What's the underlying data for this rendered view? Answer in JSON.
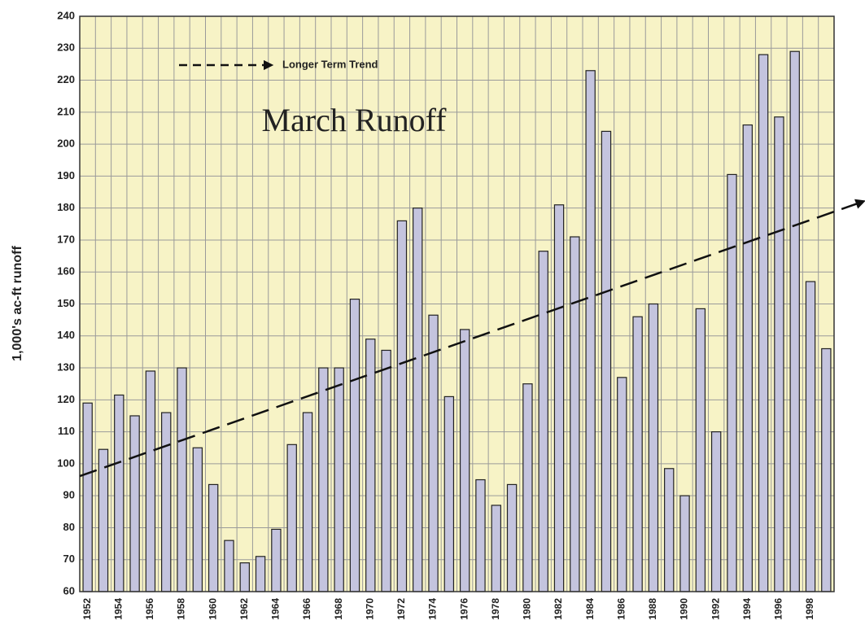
{
  "chart_data": {
    "type": "bar",
    "title": "March Runoff",
    "y_label": "1,000's ac-ft runoff",
    "legend": "Longer Term Trend",
    "trend_start": 97,
    "trend_end": 178,
    "categories": [
      "1952",
      null,
      "1954",
      null,
      "1956",
      null,
      "1958",
      null,
      "1960",
      null,
      "1962",
      null,
      "1964",
      null,
      "1966",
      null,
      "1968",
      null,
      "1970",
      null,
      "1972",
      null,
      "1974",
      null,
      "1976",
      null,
      "1978",
      null,
      "1980",
      null,
      "1982",
      null,
      "1984",
      null,
      "1986",
      null,
      "1988",
      null,
      "1990",
      null,
      "1992",
      null,
      "1994",
      null,
      "1996",
      null,
      "1998",
      null
    ],
    "values": [
      119,
      104.5,
      121.5,
      115,
      129,
      116,
      130,
      105,
      93.5,
      76,
      69,
      71,
      79.5,
      106,
      116,
      130,
      130,
      151.5,
      139,
      135.5,
      176,
      180,
      146.5,
      121,
      142,
      95,
      87,
      93.5,
      125,
      166.5,
      181,
      171,
      223,
      204,
      127,
      146,
      150,
      98.5,
      90,
      148.5,
      110,
      190.5,
      206,
      228,
      208.5,
      229,
      157,
      136
    ],
    "color": "#c4c4de",
    "ylim": [
      60,
      240
    ],
    "yticks": [
      60,
      70,
      80,
      90,
      100,
      110,
      120,
      130,
      140,
      150,
      160,
      170,
      180,
      190,
      200,
      210,
      220,
      230,
      240
    ],
    "grid": true
  }
}
